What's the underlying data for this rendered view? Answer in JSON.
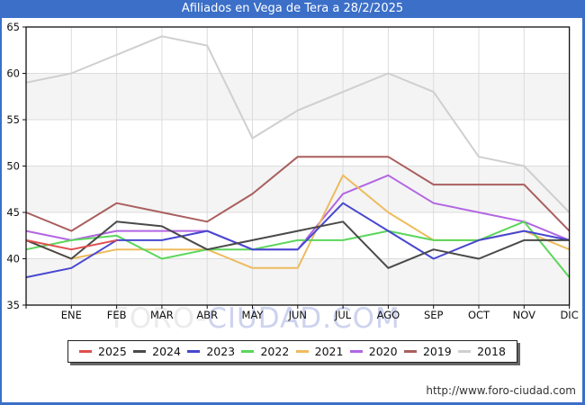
{
  "window": {
    "title": "Afiliados en Vega de Tera a 28/2/2025",
    "title_bar_color": "#3b6fc8",
    "title_text_color": "#ffffff"
  },
  "watermark": {
    "part1": "FORO-",
    "part2": "CIUDAD.COM"
  },
  "footer": {
    "url": "http://www.foro-ciudad.com"
  },
  "chart_data": {
    "type": "line",
    "title": "Afiliados en Vega de Tera a 28/2/2025",
    "xlabel": "",
    "ylabel": "",
    "categories": [
      "",
      "ENE",
      "FEB",
      "MAR",
      "ABR",
      "MAY",
      "JUN",
      "JUL",
      "AGO",
      "SEP",
      "OCT",
      "NOV",
      "DIC"
    ],
    "ylim": [
      35,
      65
    ],
    "y_ticks": [
      35,
      40,
      45,
      50,
      55,
      60,
      65
    ],
    "grid": true,
    "band_color": "#f4f4f4",
    "grid_color": "#dcdcdc",
    "axis_color": "#111111",
    "legend_position": "bottom",
    "series": [
      {
        "name": "2025",
        "color": "#e04e4e",
        "values": [
          42,
          41,
          42
        ]
      },
      {
        "name": "2024",
        "color": "#4a4a4a",
        "values": [
          42,
          40,
          44,
          43.5,
          41,
          42,
          43,
          44,
          39,
          41,
          40,
          42,
          42
        ]
      },
      {
        "name": "2023",
        "color": "#4747d1",
        "values": [
          38,
          39,
          42,
          42,
          43,
          41,
          41,
          46,
          43,
          40,
          42,
          43,
          42
        ]
      },
      {
        "name": "2022",
        "color": "#5cd65c",
        "values": [
          41,
          42,
          42.5,
          40,
          41,
          41,
          42,
          42,
          43,
          42,
          42,
          44,
          38
        ]
      },
      {
        "name": "2021",
        "color": "#eebb5e",
        "values": [
          42,
          40,
          41,
          41,
          41,
          39,
          39,
          49,
          45,
          42,
          42,
          43,
          41
        ]
      },
      {
        "name": "2020",
        "color": "#b266e2",
        "values": [
          43,
          42,
          43,
          43,
          43,
          41,
          41,
          47,
          49,
          46,
          45,
          44,
          42
        ]
      },
      {
        "name": "2019",
        "color": "#aa5f5f",
        "values": [
          45,
          43,
          46,
          45,
          44,
          47,
          51,
          51,
          51,
          48,
          48,
          48,
          43
        ]
      },
      {
        "name": "2018",
        "color": "#cfcfcf",
        "values": [
          59,
          60,
          62,
          64,
          63,
          53,
          56,
          58,
          60,
          58,
          51,
          50,
          45
        ]
      }
    ]
  }
}
